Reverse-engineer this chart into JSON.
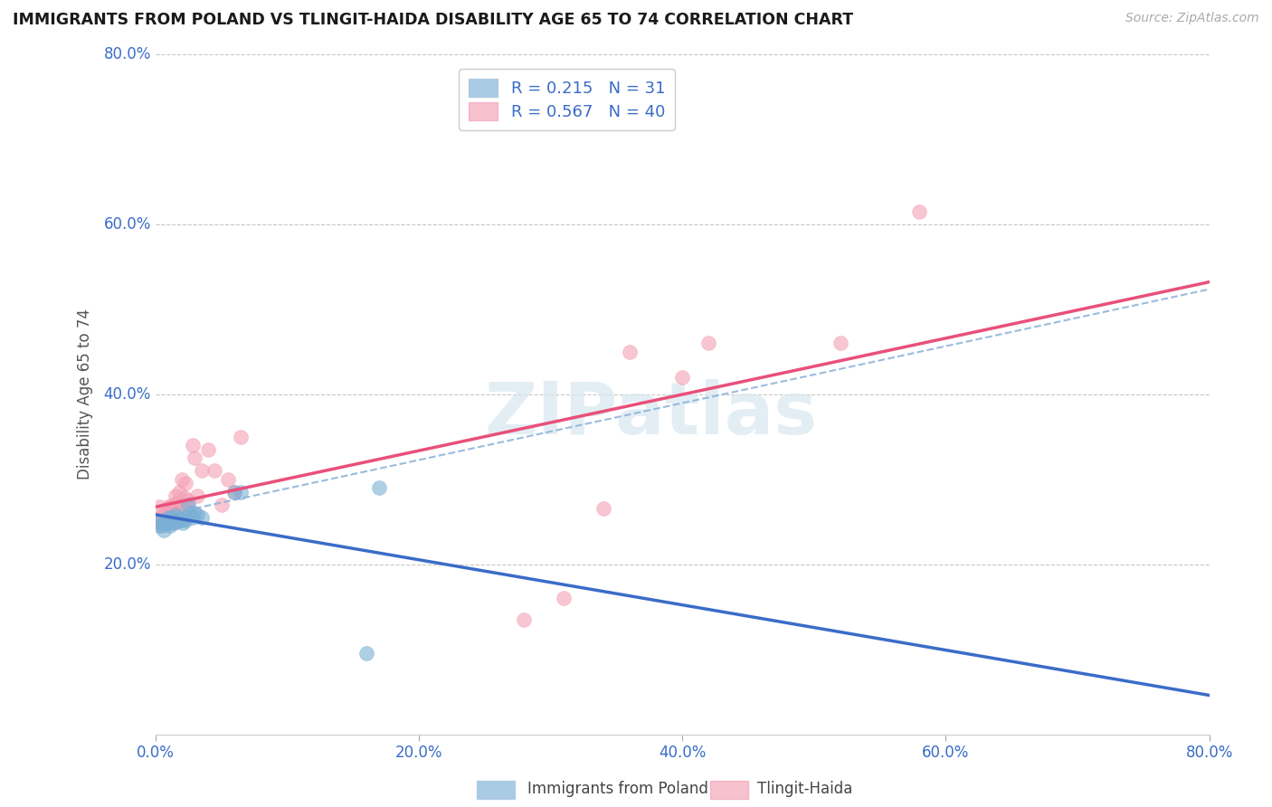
{
  "title": "IMMIGRANTS FROM POLAND VS TLINGIT-HAIDA DISABILITY AGE 65 TO 74 CORRELATION CHART",
  "source": "Source: ZipAtlas.com",
  "ylabel_label": "Disability Age 65 to 74",
  "xlim": [
    0.0,
    0.8
  ],
  "ylim": [
    0.0,
    0.8
  ],
  "xticks": [
    0.0,
    0.2,
    0.4,
    0.6,
    0.8
  ],
  "yticks": [
    0.2,
    0.4,
    0.6,
    0.8
  ],
  "xtick_labels": [
    "0.0%",
    "20.0%",
    "40.0%",
    "60.0%",
    "80.0%"
  ],
  "ytick_labels": [
    "20.0%",
    "40.0%",
    "60.0%",
    "80.0%"
  ],
  "grid_color": "#c8c8c8",
  "background_color": "#ffffff",
  "poland_color": "#7bafd4",
  "tlingit_color": "#f4a0b5",
  "poland_line_color": "#3a6cc8",
  "tlingit_line_color": "#e8507a",
  "combined_line_color": "#8ab0d8",
  "poland_R": 0.215,
  "poland_N": 31,
  "tlingit_R": 0.567,
  "tlingit_N": 40,
  "legend_label_poland": "Immigrants from Poland",
  "legend_label_tlingit": "Tlingit-Haida",
  "watermark": "ZIPatlas",
  "poland_x": [
    0.002,
    0.004,
    0.005,
    0.006,
    0.007,
    0.008,
    0.009,
    0.01,
    0.01,
    0.011,
    0.012,
    0.013,
    0.014,
    0.015,
    0.016,
    0.017,
    0.018,
    0.02,
    0.021,
    0.022,
    0.023,
    0.025,
    0.026,
    0.028,
    0.03,
    0.032,
    0.035,
    0.06,
    0.065,
    0.16,
    0.17
  ],
  "poland_y": [
    0.245,
    0.25,
    0.245,
    0.24,
    0.248,
    0.252,
    0.25,
    0.248,
    0.255,
    0.245,
    0.255,
    0.248,
    0.252,
    0.258,
    0.25,
    0.252,
    0.255,
    0.252,
    0.248,
    0.255,
    0.252,
    0.27,
    0.26,
    0.255,
    0.26,
    0.258,
    0.255,
    0.285,
    0.285,
    0.095,
    0.29
  ],
  "tlingit_x": [
    0.002,
    0.003,
    0.004,
    0.005,
    0.006,
    0.007,
    0.008,
    0.009,
    0.01,
    0.011,
    0.012,
    0.013,
    0.014,
    0.015,
    0.016,
    0.017,
    0.018,
    0.02,
    0.022,
    0.023,
    0.024,
    0.025,
    0.028,
    0.03,
    0.032,
    0.035,
    0.04,
    0.045,
    0.05,
    0.055,
    0.06,
    0.065,
    0.28,
    0.31,
    0.34,
    0.36,
    0.4,
    0.42,
    0.52,
    0.58
  ],
  "tlingit_y": [
    0.25,
    0.268,
    0.255,
    0.255,
    0.26,
    0.255,
    0.258,
    0.265,
    0.268,
    0.265,
    0.268,
    0.27,
    0.265,
    0.28,
    0.272,
    0.268,
    0.285,
    0.3,
    0.278,
    0.295,
    0.268,
    0.275,
    0.34,
    0.325,
    0.28,
    0.31,
    0.335,
    0.31,
    0.27,
    0.3,
    0.285,
    0.35,
    0.135,
    0.16,
    0.265,
    0.45,
    0.42,
    0.46,
    0.46,
    0.615
  ]
}
